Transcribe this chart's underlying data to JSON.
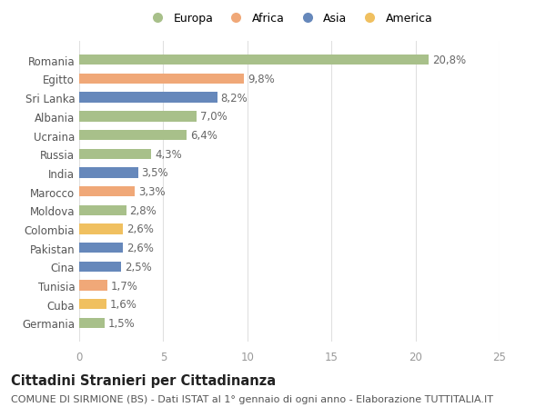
{
  "countries": [
    "Romania",
    "Egitto",
    "Sri Lanka",
    "Albania",
    "Ucraina",
    "Russia",
    "India",
    "Marocco",
    "Moldova",
    "Colombia",
    "Pakistan",
    "Cina",
    "Tunisia",
    "Cuba",
    "Germania"
  ],
  "values": [
    20.8,
    9.8,
    8.2,
    7.0,
    6.4,
    4.3,
    3.5,
    3.3,
    2.8,
    2.6,
    2.6,
    2.5,
    1.7,
    1.6,
    1.5
  ],
  "labels": [
    "20,8%",
    "9,8%",
    "8,2%",
    "7,0%",
    "6,4%",
    "4,3%",
    "3,5%",
    "3,3%",
    "2,8%",
    "2,6%",
    "2,6%",
    "2,5%",
    "1,7%",
    "1,6%",
    "1,5%"
  ],
  "continents": [
    "Europa",
    "Africa",
    "Asia",
    "Europa",
    "Europa",
    "Europa",
    "Asia",
    "Africa",
    "Europa",
    "America",
    "Asia",
    "Asia",
    "Africa",
    "America",
    "Europa"
  ],
  "continent_colors": {
    "Europa": "#a8c08a",
    "Africa": "#f0a878",
    "Asia": "#6688bb",
    "America": "#f0c060"
  },
  "legend_order": [
    "Europa",
    "Africa",
    "Asia",
    "America"
  ],
  "title1": "Cittadini Stranieri per Cittadinanza",
  "title2": "COMUNE DI SIRMIONE (BS) - Dati ISTAT al 1° gennaio di ogni anno - Elaborazione TUTTITALIA.IT",
  "xlim": [
    0,
    25
  ],
  "xticks": [
    0,
    5,
    10,
    15,
    20,
    25
  ],
  "background_color": "#ffffff",
  "grid_color": "#e0e0e0",
  "bar_height": 0.55,
  "label_fontsize": 8.5,
  "tick_fontsize": 8.5,
  "title1_fontsize": 10.5,
  "title2_fontsize": 8
}
